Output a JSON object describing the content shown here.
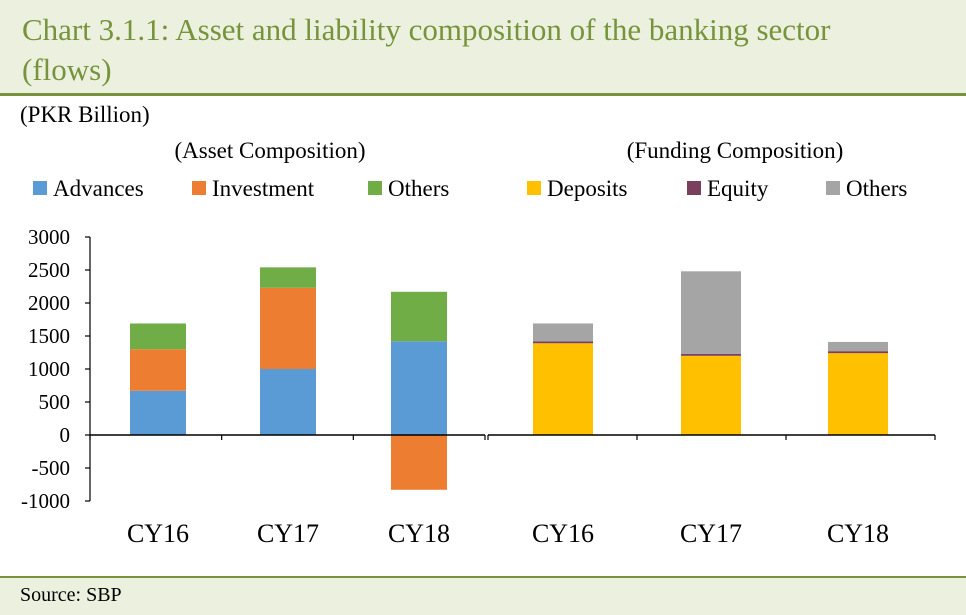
{
  "title": "Chart 3.1.1: Asset and liability composition of the banking sector (flows)",
  "unit_label": "(PKR Billion)",
  "source": "Source: SBP",
  "chart_data": [
    {
      "type": "bar",
      "stacked": true,
      "subtitle": "(Asset Composition)",
      "categories": [
        "CY16",
        "CY17",
        "CY18"
      ],
      "series": [
        {
          "name": "Advances",
          "color": "#5b9bd5",
          "values": [
            670,
            1000,
            1420
          ]
        },
        {
          "name": "Investment",
          "color": "#ed7d31",
          "values": [
            630,
            1230,
            -830
          ]
        },
        {
          "name": "Others",
          "color": "#70ad47",
          "values": [
            390,
            310,
            750
          ]
        }
      ],
      "ylim": [
        -1000,
        3000
      ],
      "yticks": [
        3000,
        2500,
        2000,
        1500,
        1000,
        500,
        0,
        -500,
        -1000
      ],
      "ytick_labels": [
        "3000",
        "2500",
        "2000",
        "1500",
        "1000",
        "500",
        "0",
        "-500",
        "-1000"
      ],
      "legend": "top"
    },
    {
      "type": "bar",
      "stacked": true,
      "subtitle": "(Funding Composition)",
      "categories": [
        "CY16",
        "CY17",
        "CY18"
      ],
      "series": [
        {
          "name": "Deposits",
          "color": "#ffc000",
          "values": [
            1390,
            1200,
            1240
          ]
        },
        {
          "name": "Equity",
          "color": "#7b3f5e",
          "values": [
            30,
            30,
            30
          ]
        },
        {
          "name": "Others",
          "color": "#a5a5a5",
          "values": [
            270,
            1250,
            140
          ]
        }
      ],
      "ylim": [
        -1000,
        3000
      ],
      "legend": "top"
    }
  ]
}
